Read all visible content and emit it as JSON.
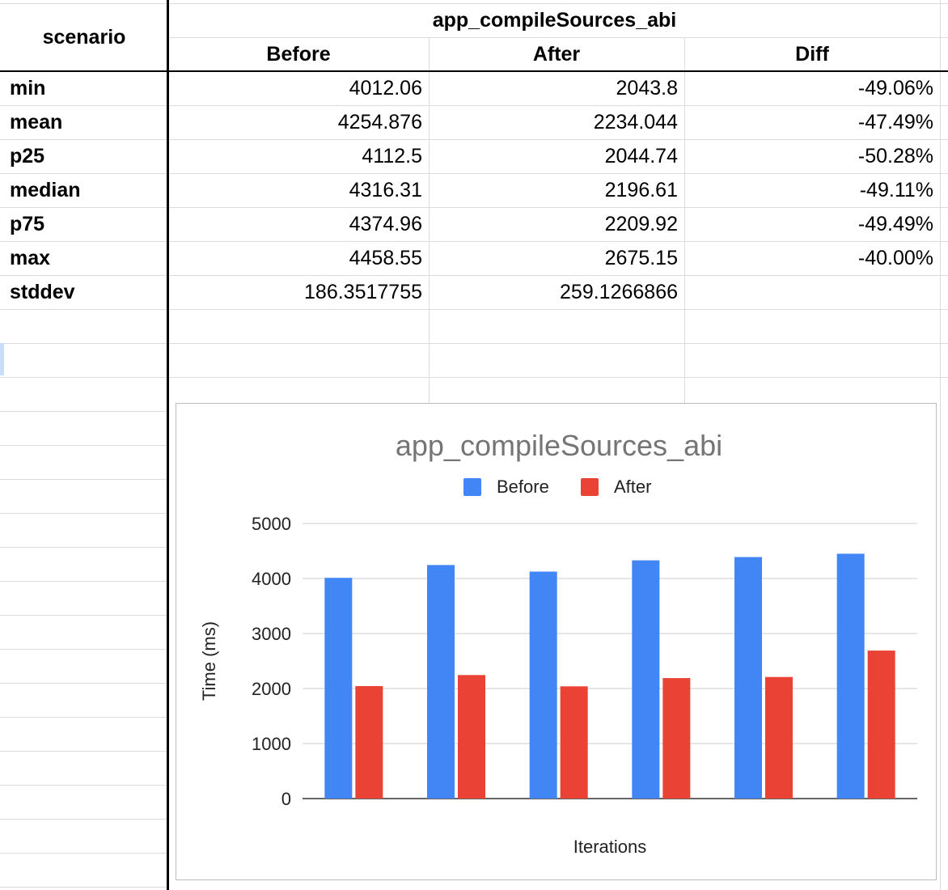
{
  "table": {
    "corner_header": "scenario",
    "group_header": "app_compileSources_abi",
    "columns": [
      "Before",
      "After",
      "Diff"
    ],
    "rows": [
      {
        "label": "min",
        "before": "4012.06",
        "after": "2043.8",
        "diff": "-49.06%"
      },
      {
        "label": "mean",
        "before": "4254.876",
        "after": "2234.044",
        "diff": "-47.49%"
      },
      {
        "label": "p25",
        "before": "4112.5",
        "after": "2044.74",
        "diff": "-50.28%"
      },
      {
        "label": "median",
        "before": "4316.31",
        "after": "2196.61",
        "diff": "-49.11%"
      },
      {
        "label": "p75",
        "before": "4374.96",
        "after": "2209.92",
        "diff": "-49.49%"
      },
      {
        "label": "max",
        "before": "4458.55",
        "after": "2675.15",
        "diff": "-40.00%"
      },
      {
        "label": "stddev",
        "before": "186.3517755",
        "after": "259.1266866",
        "diff": ""
      }
    ]
  },
  "chart_data": {
    "type": "bar",
    "title": "app_compileSources_abi",
    "xlabel": "Iterations",
    "ylabel": "Time (ms)",
    "ylim": [
      0,
      5000
    ],
    "yticks": [
      0,
      1000,
      2000,
      3000,
      4000,
      5000
    ],
    "grid": true,
    "legend": "top-center",
    "categories": [
      "",
      "",
      "",
      "",
      "",
      ""
    ],
    "series": [
      {
        "name": "Before",
        "color": "#4285f4",
        "values": [
          4012,
          4245,
          4125,
          4330,
          4390,
          4450
        ]
      },
      {
        "name": "After",
        "color": "#ea4335",
        "values": [
          2045,
          2245,
          2040,
          2190,
          2210,
          2690
        ]
      }
    ]
  }
}
